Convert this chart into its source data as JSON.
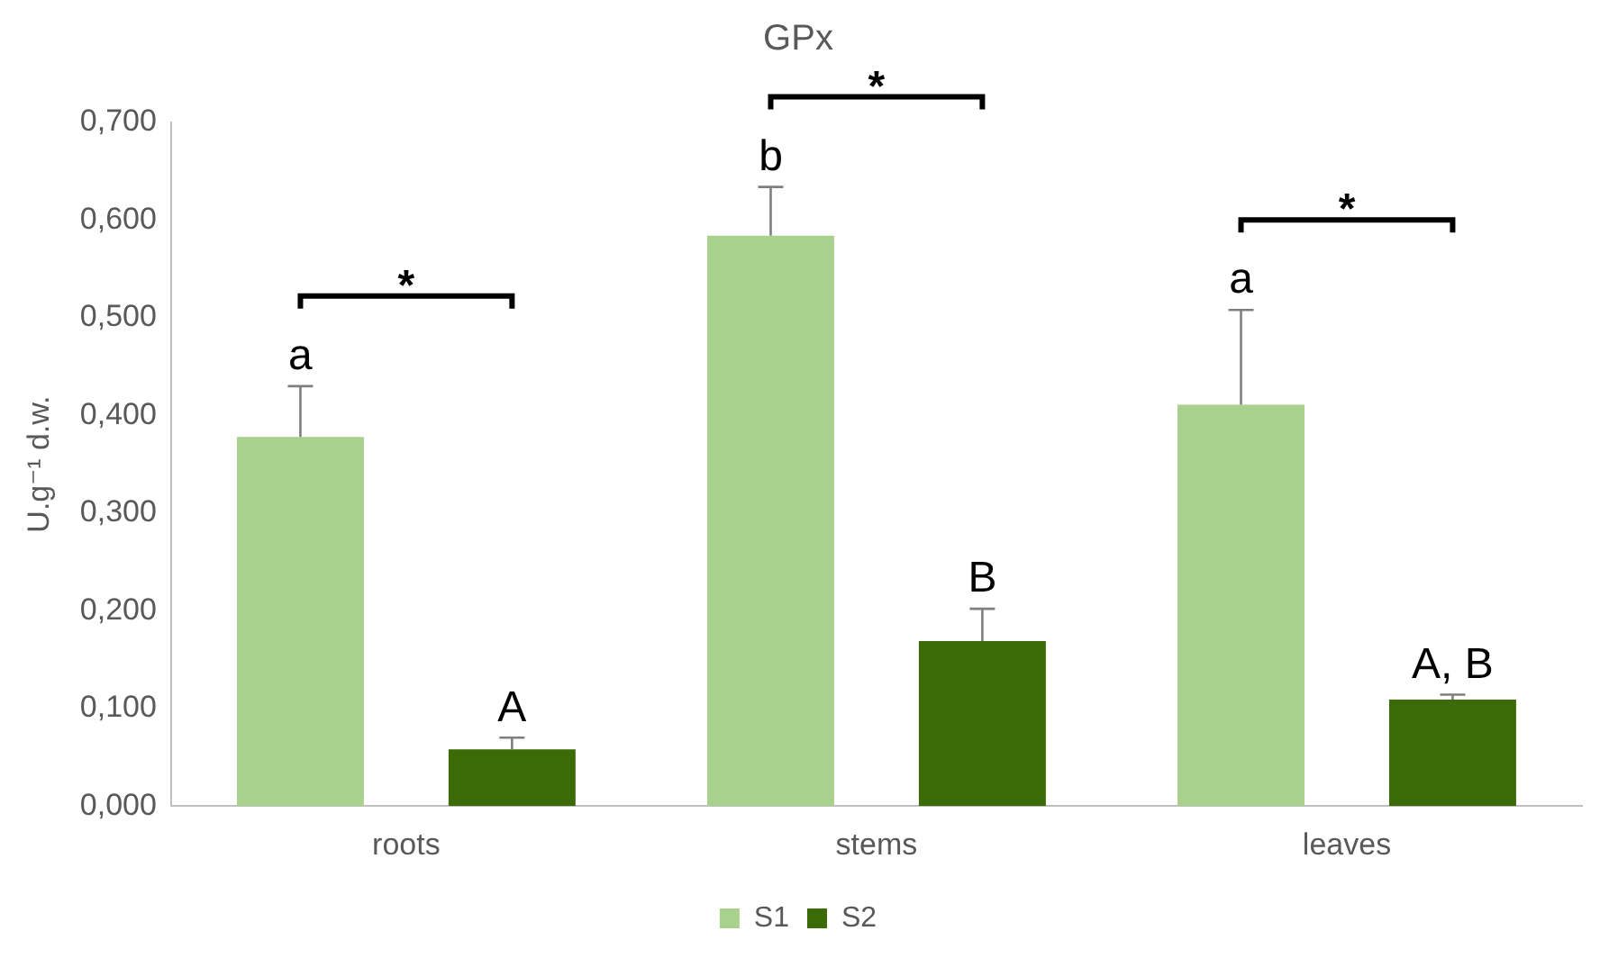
{
  "chart_data": {
    "type": "bar",
    "title": "GPx",
    "ylabel": "U.g⁻¹ d.w.",
    "categories": [
      "roots",
      "stems",
      "leaves"
    ],
    "series": [
      {
        "name": "S1",
        "color": "#a9d18e",
        "values": [
          0.378,
          0.584,
          0.411
        ],
        "errors": [
          [
            0.378,
            0.43
          ],
          [
            0.584,
            0.634
          ],
          [
            0.411,
            0.508
          ]
        ]
      },
      {
        "name": "S2",
        "color": "#3a6b06",
        "values": [
          0.058,
          0.169,
          0.109
        ],
        "errors": [
          [
            0.058,
            0.07
          ],
          [
            0.169,
            0.202
          ],
          [
            0.109,
            0.114
          ]
        ]
      }
    ],
    "ylim": [
      0,
      0.7
    ],
    "yticks": [
      {
        "value": 0,
        "label": "0,000"
      },
      {
        "value": 0.1,
        "label": "0,100"
      },
      {
        "value": 0.2,
        "label": "0,200"
      },
      {
        "value": 0.3,
        "label": "0,300"
      },
      {
        "value": 0.4,
        "label": "0,400"
      },
      {
        "value": 0.5,
        "label": "0,500"
      },
      {
        "value": 0.6,
        "label": "0,600"
      },
      {
        "value": 0.7,
        "label": "0,700"
      }
    ],
    "grid": false,
    "legend": "bottom",
    "annotations": [
      "a",
      "A",
      "b",
      "B",
      "a",
      "A, B",
      "*",
      "*",
      "*"
    ]
  }
}
